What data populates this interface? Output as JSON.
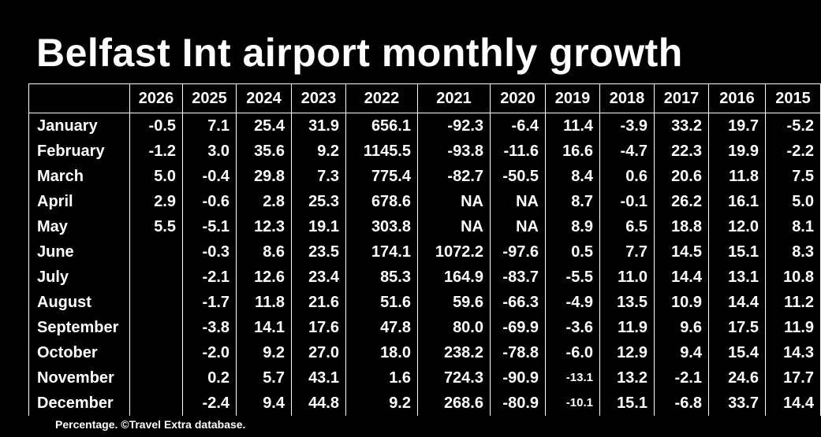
{
  "chart_data": {
    "type": "table",
    "title": "Belfast Int airport monthly growth",
    "footnote": "Percentage. ©Travel Extra database.",
    "columns": [
      "2026",
      "2025",
      "2024",
      "2023",
      "2022",
      "2021",
      "2020",
      "2019",
      "2018",
      "2017",
      "2016",
      "2015"
    ],
    "rows": [
      {
        "label": "January",
        "values": [
          "-0.5",
          "7.1",
          "25.4",
          "31.9",
          "656.1",
          "-92.3",
          "-6.4",
          "11.4",
          "-3.9",
          "33.2",
          "19.7",
          "-5.2"
        ]
      },
      {
        "label": "February",
        "values": [
          "-1.2",
          "3.0",
          "35.6",
          "9.2",
          "1145.5",
          "-93.8",
          "-11.6",
          "16.6",
          "-4.7",
          "22.3",
          "19.9",
          "-2.2"
        ]
      },
      {
        "label": "March",
        "values": [
          "5.0",
          "-0.4",
          "29.8",
          "7.3",
          "775.4",
          "-82.7",
          "-50.5",
          "8.4",
          "0.6",
          "20.6",
          "11.8",
          "7.5"
        ]
      },
      {
        "label": "April",
        "values": [
          "2.9",
          "-0.6",
          "2.8",
          "25.3",
          "678.6",
          "NA",
          "NA",
          "8.7",
          "-0.1",
          "26.2",
          "16.1",
          "5.0"
        ]
      },
      {
        "label": "May",
        "values": [
          "5.5",
          "-5.1",
          "12.3",
          "19.1",
          "303.8",
          "NA",
          "NA",
          "8.9",
          "6.5",
          "18.8",
          "12.0",
          "8.1"
        ]
      },
      {
        "label": "June",
        "values": [
          "",
          "-0.3",
          "8.6",
          "23.5",
          "174.1",
          "1072.2",
          "-97.6",
          "0.5",
          "7.7",
          "14.5",
          "15.1",
          "8.3"
        ]
      },
      {
        "label": "July",
        "values": [
          "",
          "-2.1",
          "12.6",
          "23.4",
          "85.3",
          "164.9",
          "-83.7",
          "-5.5",
          "11.0",
          "14.4",
          "13.1",
          "10.8"
        ]
      },
      {
        "label": "August",
        "values": [
          "",
          "-1.7",
          "11.8",
          "21.6",
          "51.6",
          "59.6",
          "-66.3",
          "-4.9",
          "13.5",
          "10.9",
          "14.4",
          "11.2"
        ]
      },
      {
        "label": "September",
        "values": [
          "",
          "-3.8",
          "14.1",
          "17.6",
          "47.8",
          "80.0",
          "-69.9",
          "-3.6",
          "11.9",
          "9.6",
          "17.5",
          "11.9"
        ]
      },
      {
        "label": "October",
        "values": [
          "",
          "-2.0",
          "9.2",
          "27.0",
          "18.0",
          "238.2",
          "-78.8",
          "-6.0",
          "12.9",
          "9.4",
          "15.4",
          "14.3"
        ]
      },
      {
        "label": "November",
        "values": [
          "",
          "0.2",
          "5.7",
          "43.1",
          "1.6",
          "724.3",
          "-90.9",
          "-13.1",
          "13.2",
          "-2.1",
          "24.6",
          "17.7"
        ]
      },
      {
        "label": "December",
        "values": [
          "",
          "-2.4",
          "9.4",
          "44.8",
          "9.2",
          "268.6",
          "-80.9",
          "-10.1",
          "15.1",
          "-6.8",
          "33.7",
          "14.4"
        ]
      }
    ]
  }
}
